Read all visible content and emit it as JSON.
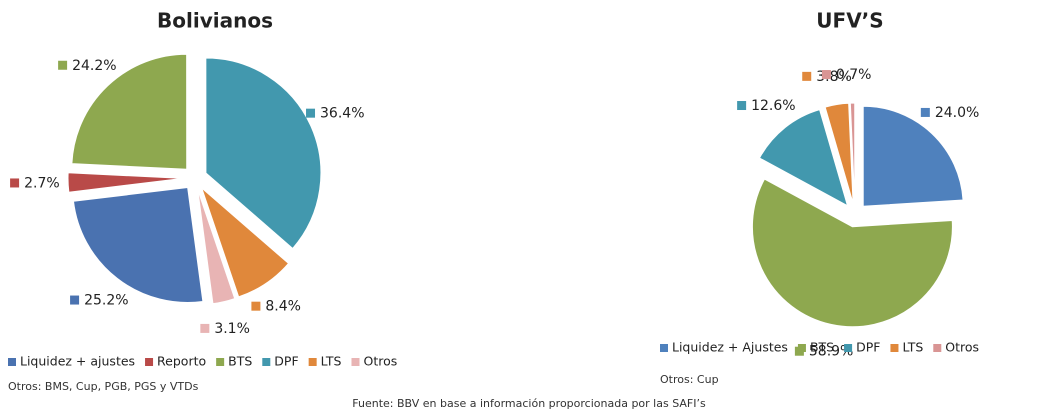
{
  "chart_data": [
    {
      "type": "pie",
      "title": "Bolivianos",
      "categories": [
        "Liquidez + ajustes",
        "Reporto",
        "BTS",
        "DPF",
        "LTS",
        "Otros"
      ],
      "values": [
        25.2,
        2.7,
        24.2,
        36.4,
        8.4,
        3.1
      ],
      "value_labels": [
        "25.2%",
        "2.7%",
        "24.2%",
        "36.4%",
        "8.4%",
        "3.1%"
      ],
      "colors": [
        "#4a72b0",
        "#b94a48",
        "#8ea84f",
        "#4298ae",
        "#e0883b",
        "#e8b4b4"
      ],
      "legend": "bottom",
      "note": "Otros: BMS, Cup, PGB, PGS y VTDs"
    },
    {
      "type": "pie",
      "title": "UFV’S",
      "categories": [
        "Liquidez + Ajustes",
        "BTS",
        "DPF",
        "LTS",
        "Otros"
      ],
      "values": [
        24.0,
        58.9,
        12.6,
        3.8,
        0.7
      ],
      "value_labels": [
        "24.0%",
        "58.9%",
        "12.6%",
        "3.8%",
        "0.7%"
      ],
      "colors": [
        "#4f81bd",
        "#8ea84f",
        "#4298ae",
        "#e0883b",
        "#d99594"
      ],
      "legend": "bottom",
      "note": "Otros: Cup"
    }
  ],
  "source": "Fuente: BBV en base a información proporcionada por las SAFI’s"
}
